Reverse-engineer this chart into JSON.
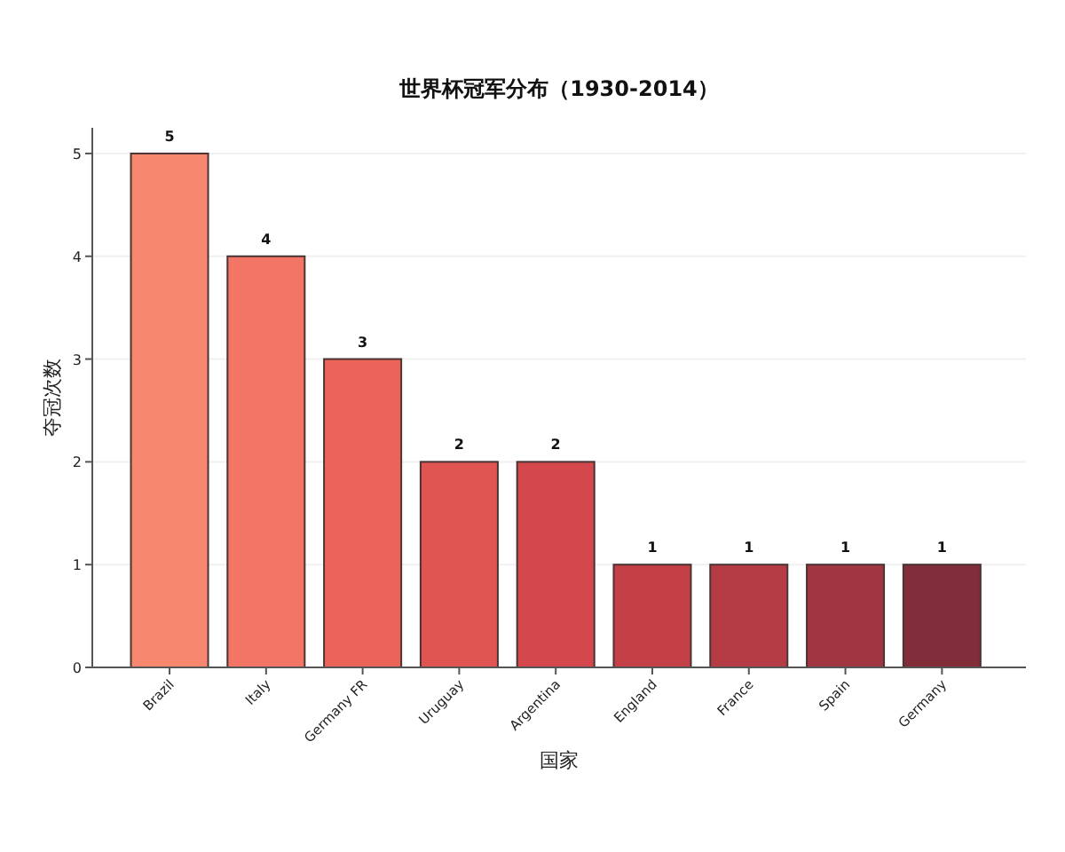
{
  "chart_data": {
    "type": "bar",
    "title": "世界杯冠军分布（1930-2014）",
    "xlabel": "国家",
    "ylabel": "夺冠次数",
    "categories": [
      "Brazil",
      "Italy",
      "Germany FR",
      "Uruguay",
      "Argentina",
      "England",
      "France",
      "Spain",
      "Germany"
    ],
    "values": [
      5,
      4,
      3,
      2,
      2,
      1,
      1,
      1,
      1
    ],
    "colors": [
      "#f7876f",
      "#f27565",
      "#ec6459",
      "#e05452",
      "#d4474d",
      "#c43f46",
      "#b53c44",
      "#a23640",
      "#822d3a"
    ],
    "ylim": [
      0,
      5.25
    ],
    "yticks": [
      0,
      1,
      2,
      3,
      4,
      5
    ],
    "grid": "y",
    "data_labels": true
  }
}
